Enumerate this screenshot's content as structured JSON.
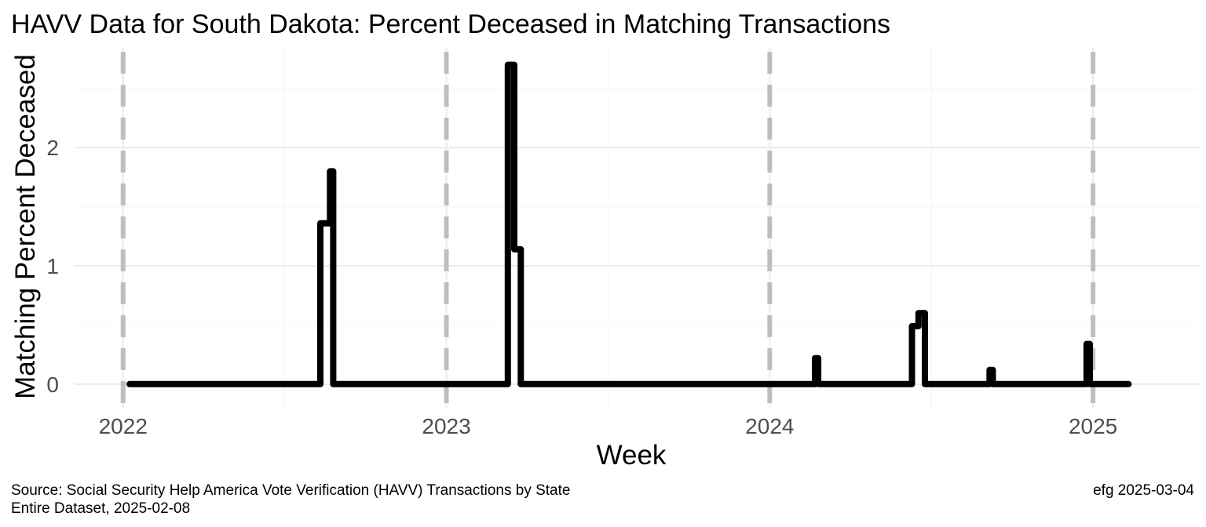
{
  "chart_data": {
    "type": "line",
    "title": "HAVV Data for South Dakota:  Percent Deceased in Matching Transactions",
    "xlabel": "Week",
    "ylabel": "Matching Percent Deceased",
    "x_ticks": [
      "2022",
      "2023",
      "2024",
      "2025"
    ],
    "y_ticks": [
      "0",
      "1",
      "2"
    ],
    "xlim": [
      2021.85,
      2025.33
    ],
    "ylim": [
      -0.2,
      2.85
    ],
    "reference_lines_x": [
      2022,
      2023,
      2024,
      2025
    ],
    "reference_line_color": "#bebebe",
    "line_color": "#000000",
    "grid": true,
    "series": [
      {
        "points": [
          [
            2022.02,
            0
          ],
          [
            2022.61,
            0
          ],
          [
            2022.61,
            1.36
          ],
          [
            2022.64,
            1.36
          ],
          [
            2022.64,
            1.8
          ],
          [
            2022.65,
            1.8
          ],
          [
            2022.65,
            0
          ],
          [
            2023.19,
            0
          ],
          [
            2023.19,
            2.7
          ],
          [
            2023.21,
            2.7
          ],
          [
            2023.21,
            1.14
          ],
          [
            2023.23,
            1.14
          ],
          [
            2023.23,
            0
          ],
          [
            2024.14,
            0
          ],
          [
            2024.14,
            0.22
          ],
          [
            2024.15,
            0.22
          ],
          [
            2024.15,
            0
          ],
          [
            2024.44,
            0
          ],
          [
            2024.44,
            0.49
          ],
          [
            2024.46,
            0.49
          ],
          [
            2024.46,
            0.6
          ],
          [
            2024.48,
            0.6
          ],
          [
            2024.48,
            0
          ],
          [
            2024.68,
            0
          ],
          [
            2024.68,
            0.12
          ],
          [
            2024.69,
            0.12
          ],
          [
            2024.69,
            0
          ],
          [
            2024.98,
            0
          ],
          [
            2024.98,
            0.34
          ],
          [
            2024.99,
            0.34
          ],
          [
            2024.99,
            0
          ],
          [
            2025.11,
            0
          ]
        ]
      }
    ]
  },
  "caption": {
    "source_line1": "Source:  Social Security Help America Vote Verification (HAVV) Transactions by State",
    "source_line2": "Entire Dataset, 2025-02-08",
    "credit": "efg 2025-03-04"
  }
}
